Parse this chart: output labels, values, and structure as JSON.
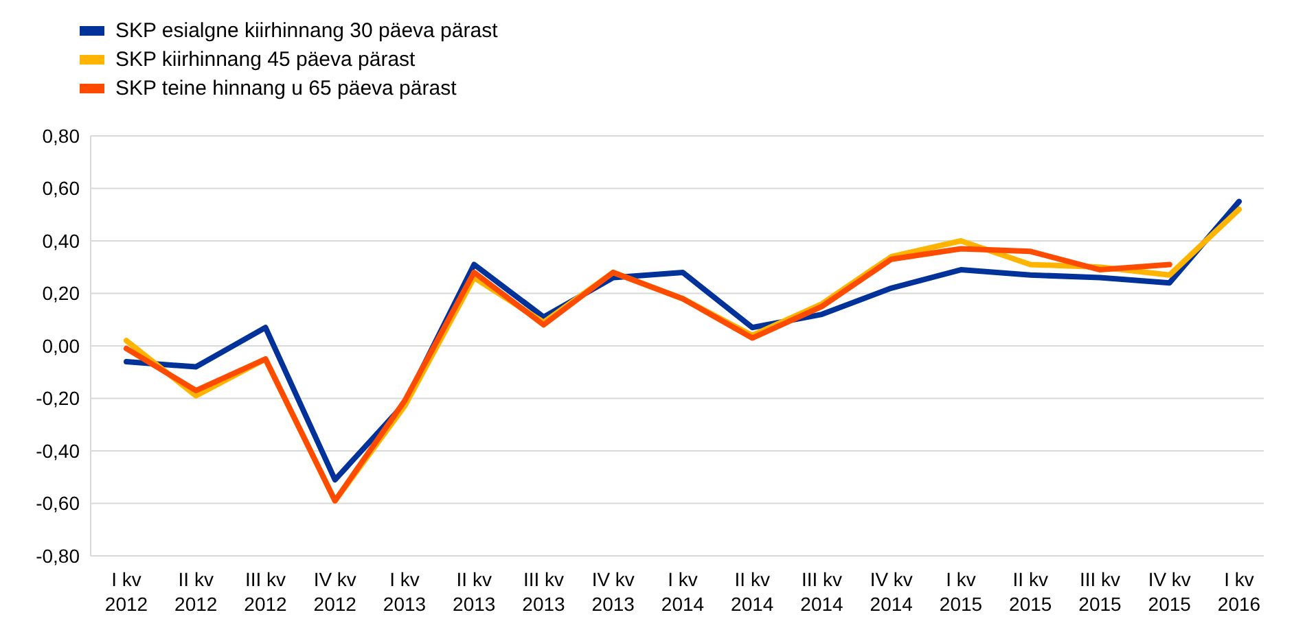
{
  "chart_data": {
    "type": "line",
    "categories": [
      "I kv 2012",
      "II kv 2012",
      "III kv 2012",
      "IV kv 2012",
      "I kv 2013",
      "II kv 2013",
      "III kv 2013",
      "IV kv 2013",
      "I kv 2014",
      "II kv 2014",
      "III kv 2014",
      "IV kv 2014",
      "I kv 2015",
      "II kv 2015",
      "III kv 2015",
      "IV kv 2015",
      "I kv 2016"
    ],
    "series": [
      {
        "name": "SKP esialgne kiirhinnang 30 päeva pärast",
        "color": "#003299",
        "values": [
          -0.06,
          -0.08,
          0.07,
          -0.51,
          -0.22,
          0.31,
          0.11,
          0.26,
          0.28,
          0.07,
          0.12,
          0.22,
          0.29,
          0.27,
          0.26,
          0.24,
          0.55
        ]
      },
      {
        "name": "SKP kiirhinnang 45 päeva pärast",
        "color": "#ffb400",
        "values": [
          0.02,
          -0.19,
          -0.05,
          -0.59,
          -0.23,
          0.26,
          0.09,
          0.28,
          0.18,
          0.04,
          0.16,
          0.34,
          0.4,
          0.31,
          0.3,
          0.27,
          0.52
        ]
      },
      {
        "name": "SKP teine hinnang u 65 päeva pärast",
        "color": "#ff4b00",
        "values": [
          -0.01,
          -0.17,
          -0.05,
          -0.59,
          -0.21,
          0.28,
          0.08,
          0.28,
          0.18,
          0.03,
          0.15,
          0.33,
          0.37,
          0.36,
          0.29,
          0.31,
          null
        ]
      }
    ],
    "ylim": [
      -0.8,
      0.8
    ],
    "yticks": [
      {
        "value": -0.8,
        "label": "-0,80"
      },
      {
        "value": -0.6,
        "label": "-0,60"
      },
      {
        "value": -0.4,
        "label": "-0,40"
      },
      {
        "value": -0.2,
        "label": "-0,20"
      },
      {
        "value": 0,
        "label": "0,00"
      },
      {
        "value": 0.2,
        "label": "0,20"
      },
      {
        "value": 0.4,
        "label": "0,40"
      },
      {
        "value": 0.6,
        "label": "0,60"
      },
      {
        "value": 0.8,
        "label": "0,80"
      }
    ],
    "grid": "y",
    "legend": "top left",
    "marker": "none",
    "line_style": "solid"
  }
}
